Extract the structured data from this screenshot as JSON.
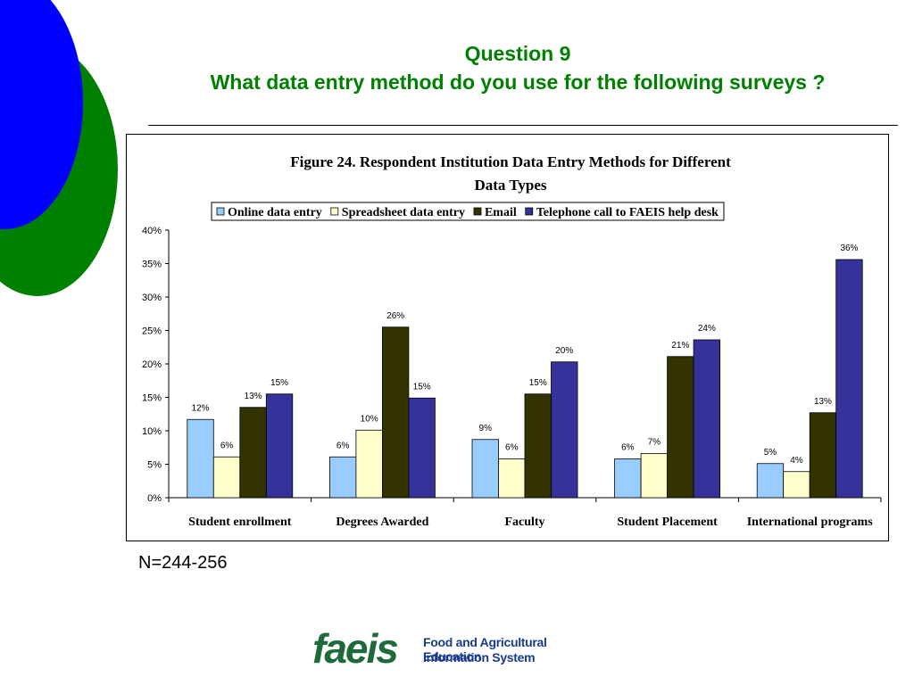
{
  "slide": {
    "title_line1": "Question 9",
    "title_line2": "What data entry method do you use for the following surveys ?",
    "sample_size": "N=244-256",
    "logo_word": "faeis",
    "logo_sub1": "Food and Agricultural Education",
    "logo_sub2": "Information System"
  },
  "colors": {
    "title": "#008000",
    "deco_blue": "#0000FF",
    "deco_green": "#008000"
  },
  "chart_data": {
    "type": "bar",
    "title_lines": [
      "Figure 24.  Respondent Institution Data Entry Methods for Different",
      "Data Types"
    ],
    "categories": [
      "Student enrollment",
      "Degrees Awarded",
      "Faculty",
      "Student Placement",
      "International programs"
    ],
    "series": [
      {
        "name": "Online data entry",
        "color": "#99CCFF",
        "values": [
          11.7,
          6.1,
          8.7,
          5.8,
          5.1
        ],
        "labels": [
          "12%",
          "6%",
          "9%",
          "6%",
          "5%"
        ]
      },
      {
        "name": "Spreadsheet data entry",
        "color": "#FFFFCC",
        "values": [
          6.1,
          10.1,
          5.8,
          6.6,
          3.9
        ],
        "labels": [
          "6%",
          "10%",
          "6%",
          "7%",
          "4%"
        ]
      },
      {
        "name": "Email",
        "color": "#333300",
        "values": [
          13.5,
          25.5,
          15.5,
          21.1,
          12.7
        ],
        "labels": [
          "13%",
          "26%",
          "15%",
          "21%",
          "13%"
        ]
      },
      {
        "name": "Telephone call to FAEIS help desk",
        "color": "#333399",
        "values": [
          15.5,
          14.9,
          20.3,
          23.6,
          35.6
        ],
        "labels": [
          "15%",
          "15%",
          "20%",
          "24%",
          "36%"
        ]
      }
    ],
    "yticks": [
      "0%",
      "5%",
      "10%",
      "15%",
      "20%",
      "25%",
      "30%",
      "35%",
      "40%"
    ],
    "ylim": [
      0,
      40
    ],
    "ystep": 5,
    "legend_position": "top",
    "grid": false
  }
}
